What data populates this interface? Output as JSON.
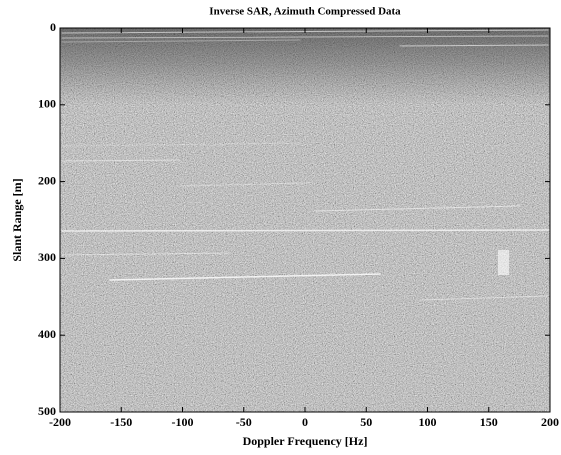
{
  "chart_data": {
    "type": "image",
    "title": "Inverse SAR, Azimuth Compressed Data",
    "x_label": "Doppler Frequency [Hz]",
    "y_label": "Slant Range [m]",
    "xlim": [
      -200,
      200
    ],
    "xticks": [
      -200,
      -150,
      -100,
      -50,
      0,
      50,
      100,
      150,
      200
    ],
    "ylim": [
      500,
      0
    ],
    "yticks": [
      0,
      100,
      200,
      300,
      400,
      500
    ]
  }
}
